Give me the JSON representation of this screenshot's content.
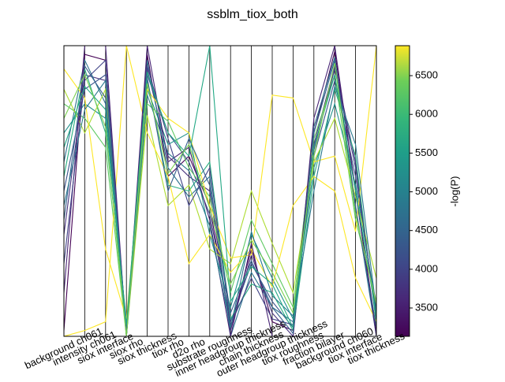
{
  "chart_data": {
    "type": "parallel",
    "title": "ssblm_tiox_both",
    "categories": [
      "background ch061",
      "intensity ch061",
      "siox interface",
      "siox rho",
      "siox thickness",
      "tiox rho",
      "d2o rho",
      "substrate roughness",
      "inner headgroup thickness",
      "chain thickness",
      "outer headgroup thickness",
      "tiox roughness",
      "fraction bilayer",
      "background ch060",
      "tiox interface",
      "tiox thickness"
    ],
    "ylim": [
      0,
      1
    ],
    "series": [
      {
        "color": "#440154",
        "values": [
          0.02,
          0.97,
          0.95,
          0.0,
          0.97,
          0.55,
          0.62,
          0.45,
          0.03,
          0.3,
          0.05,
          0.02,
          0.7,
          0.98,
          0.5,
          0.02
        ]
      },
      {
        "color": "#46327e",
        "values": [
          0.35,
          0.9,
          0.88,
          0.0,
          0.92,
          0.62,
          0.55,
          0.5,
          0.02,
          0.28,
          0.08,
          0.0,
          0.66,
          0.93,
          0.6,
          0.05
        ]
      },
      {
        "color": "#3b528b",
        "values": [
          0.5,
          0.85,
          0.9,
          0.02,
          0.9,
          0.7,
          0.6,
          0.42,
          0.05,
          0.25,
          0.12,
          0.03,
          0.62,
          0.88,
          0.55,
          0.08
        ]
      },
      {
        "color": "#2c728e",
        "values": [
          0.6,
          0.95,
          0.8,
          0.0,
          0.95,
          0.58,
          0.48,
          0.55,
          0.0,
          0.22,
          0.1,
          0.05,
          0.72,
          0.96,
          0.45,
          0.0
        ]
      },
      {
        "color": "#21918c",
        "values": [
          0.7,
          0.8,
          0.75,
          0.05,
          0.85,
          0.66,
          0.7,
          0.35,
          0.1,
          0.35,
          0.2,
          0.06,
          0.58,
          0.8,
          0.52,
          0.1
        ]
      },
      {
        "color": "#28ae80",
        "values": [
          0.55,
          0.92,
          0.7,
          0.03,
          0.88,
          0.52,
          0.5,
          0.6,
          0.06,
          0.18,
          0.15,
          0.02,
          0.55,
          0.85,
          0.62,
          0.04
        ]
      },
      {
        "color": "#5ec962",
        "values": [
          0.8,
          0.75,
          0.65,
          0.0,
          0.8,
          0.74,
          0.58,
          0.48,
          0.15,
          0.4,
          0.25,
          0.1,
          0.68,
          0.9,
          0.4,
          0.12
        ]
      },
      {
        "color": "#addc30",
        "values": [
          0.85,
          0.7,
          0.85,
          0.0,
          0.76,
          0.45,
          0.52,
          0.3,
          0.25,
          0.5,
          0.32,
          0.15,
          0.6,
          0.75,
          0.48,
          0.2
        ]
      },
      {
        "color": "#fde725",
        "values": [
          0.92,
          0.82,
          0.3,
          0.06,
          0.85,
          0.75,
          0.7,
          0.45,
          0.27,
          0.28,
          0.83,
          0.82,
          0.6,
          0.62,
          0.36,
          1.0
        ]
      },
      {
        "color": "#fde725",
        "values": [
          0.0,
          0.02,
          0.05,
          1.0,
          0.7,
          0.55,
          0.25,
          0.35,
          0.22,
          0.3,
          0.17,
          0.45,
          0.55,
          0.5,
          0.2,
          0.05
        ]
      },
      {
        "color": "#482475",
        "values": [
          0.15,
          1.0,
          1.0,
          0.0,
          1.0,
          0.6,
          0.65,
          0.4,
          0.0,
          0.32,
          0.0,
          0.0,
          0.75,
          1.0,
          0.5,
          0.0
        ]
      },
      {
        "color": "#414487",
        "values": [
          0.25,
          0.88,
          0.95,
          0.0,
          0.93,
          0.68,
          0.45,
          0.58,
          0.04,
          0.2,
          0.06,
          0.04,
          0.64,
          0.92,
          0.58,
          0.06
        ]
      },
      {
        "color": "#355f8d",
        "values": [
          0.4,
          0.93,
          0.82,
          0.02,
          0.89,
          0.5,
          0.68,
          0.52,
          0.08,
          0.26,
          0.1,
          0.01,
          0.7,
          0.95,
          0.44,
          0.03
        ]
      },
      {
        "color": "#2a788e",
        "values": [
          0.45,
          0.78,
          0.88,
          0.0,
          0.83,
          0.63,
          0.57,
          0.38,
          0.03,
          0.36,
          0.14,
          0.07,
          0.5,
          0.86,
          0.66,
          0.09
        ]
      },
      {
        "color": "#22a884",
        "values": [
          0.65,
          0.86,
          0.78,
          0.04,
          0.91,
          0.7,
          0.62,
          1.0,
          0.12,
          0.24,
          0.18,
          0.03,
          0.65,
          0.9,
          0.5,
          0.07
        ]
      },
      {
        "color": "#7ad151",
        "values": [
          0.75,
          0.9,
          0.72,
          0.0,
          0.87,
          0.56,
          0.66,
          0.44,
          0.18,
          0.33,
          0.22,
          0.08,
          0.62,
          0.94,
          0.42,
          0.11
        ]
      }
    ],
    "colorbar": {
      "label": "-log(P)",
      "lim": [
        3134,
        6887
      ],
      "ticks": [
        3500,
        4000,
        4500,
        5000,
        5500,
        6000,
        6500
      ]
    }
  }
}
